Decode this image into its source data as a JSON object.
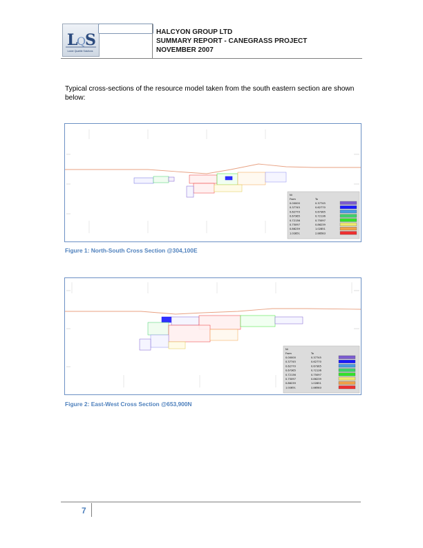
{
  "header": {
    "logo_caption": "Lower Quartile Solutions",
    "company": "HALCYON GROUP LTD",
    "report": "SUMMARY REPORT - CANEGRASS PROJECT",
    "date": "NOVEMBER 2007"
  },
  "intro_text": "Typical cross-sections of the resource model taken from the south eastern section are shown below:",
  "figures": [
    {
      "caption": "Figure 1: North-South Cross Section @304,100E",
      "legend": {
        "title": "Ni",
        "col_from": "From",
        "col_to": "To",
        "rows": [
          {
            "from": "0.00000",
            "to": "0.37745",
            "color": "#7b5ccf"
          },
          {
            "from": "0.37745",
            "to": "0.62770",
            "color": "#1a1aff"
          },
          {
            "from": "0.62770",
            "to": "0.67365",
            "color": "#4a9be0"
          },
          {
            "from": "0.67365",
            "to": "0.72136",
            "color": "#3fcf6a"
          },
          {
            "from": "0.72136",
            "to": "0.75097",
            "color": "#33e02a"
          },
          {
            "from": "0.75097",
            "to": "0.86239",
            "color": "#efe86e"
          },
          {
            "from": "0.86239",
            "to": "1.02851",
            "color": "#f2a24a"
          },
          {
            "from": "1.02851",
            "to": "2.88583",
            "color": "#ee3030"
          }
        ]
      }
    },
    {
      "caption": "Figure 2: East-West Cross Section @653,900N",
      "legend": {
        "title": "Ni",
        "col_from": "From",
        "col_to": "To",
        "rows": [
          {
            "from": "0.00000",
            "to": "0.37745",
            "color": "#7b5ccf"
          },
          {
            "from": "0.37745",
            "to": "0.62770",
            "color": "#1a1aff"
          },
          {
            "from": "0.62770",
            "to": "0.67365",
            "color": "#4a9be0"
          },
          {
            "from": "0.67365",
            "to": "0.72136",
            "color": "#3fcf6a"
          },
          {
            "from": "0.72136",
            "to": "0.75097",
            "color": "#33e02a"
          },
          {
            "from": "0.75097",
            "to": "0.86239",
            "color": "#efe86e"
          },
          {
            "from": "0.86239",
            "to": "1.02851",
            "color": "#f2a24a"
          },
          {
            "from": "1.02851",
            "to": "2.88583",
            "color": "#ee3030"
          }
        ]
      }
    }
  ],
  "page_number": "7"
}
